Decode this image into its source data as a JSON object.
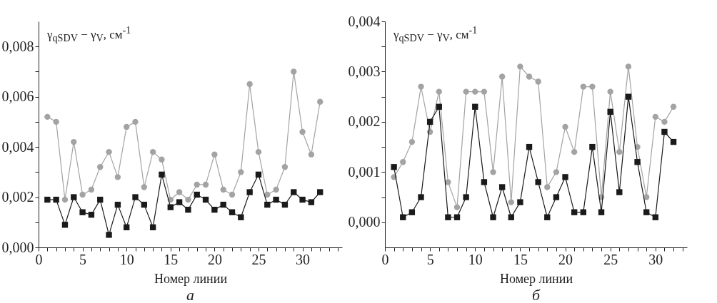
{
  "chart_data": [
    {
      "type": "line",
      "title": "а",
      "xlabel": "Номер линии",
      "ylabel": "γ$_{qSDV}$ − γ$_{V}$, см$^{-1}$",
      "x": [
        1,
        2,
        3,
        4,
        5,
        6,
        7,
        8,
        9,
        10,
        11,
        12,
        13,
        14,
        15,
        16,
        17,
        18,
        19,
        20,
        21,
        22,
        23,
        24,
        25,
        26,
        27,
        28,
        29,
        30,
        31,
        32
      ],
      "series": [
        {
          "color": "#a3a3a3",
          "marker": "circle",
          "values": [
            0.0052,
            0.005,
            0.0019,
            0.0042,
            0.0021,
            0.0023,
            0.0032,
            0.0038,
            0.0028,
            0.0048,
            0.005,
            0.0024,
            0.0038,
            0.0035,
            0.0019,
            0.0022,
            0.0019,
            0.0025,
            0.0025,
            0.0037,
            0.0023,
            0.0021,
            0.003,
            0.0065,
            0.0038,
            0.0021,
            0.0023,
            0.0032,
            0.007,
            0.0046,
            0.0037,
            0.0058
          ]
        },
        {
          "color": "#1a1a1a",
          "marker": "square",
          "values": [
            0.0019,
            0.0019,
            0.0009,
            0.002,
            0.0014,
            0.0013,
            0.0019,
            0.0005,
            0.0017,
            0.0008,
            0.002,
            0.0017,
            0.0008,
            0.0029,
            0.0016,
            0.0018,
            0.0015,
            0.0021,
            0.0019,
            0.0015,
            0.0017,
            0.0014,
            0.0012,
            0.0022,
            0.0029,
            0.0017,
            0.0019,
            0.0017,
            0.0022,
            0.0019,
            0.0018,
            0.0022
          ]
        }
      ],
      "xlim": [
        0,
        34.5
      ],
      "ylim": [
        0,
        0.009
      ],
      "xticks": [
        0,
        {
          "value": 1,
          "label": null
        },
        {
          "value": 2,
          "label": null
        },
        {
          "value": 3,
          "label": null
        },
        {
          "value": 4,
          "label": null
        },
        5,
        {
          "value": 6,
          "label": null
        },
        {
          "value": 7,
          "label": null
        },
        {
          "value": 8,
          "label": null
        },
        {
          "value": 9,
          "label": null
        },
        10,
        {
          "value": 11,
          "label": null
        },
        {
          "value": 12,
          "label": null
        },
        {
          "value": 13,
          "label": null
        },
        {
          "value": 14,
          "label": null
        },
        15,
        {
          "value": 16,
          "label": null
        },
        {
          "value": 17,
          "label": null
        },
        {
          "value": 18,
          "label": null
        },
        {
          "value": 19,
          "label": null
        },
        20,
        {
          "value": 21,
          "label": null
        },
        {
          "value": 22,
          "label": null
        },
        {
          "value": 23,
          "label": null
        },
        {
          "value": 24,
          "label": null
        },
        25,
        {
          "value": 26,
          "label": null
        },
        {
          "value": 27,
          "label": null
        },
        {
          "value": 28,
          "label": null
        },
        {
          "value": 29,
          "label": null
        },
        30,
        {
          "value": 31,
          "label": null
        },
        {
          "value": 32,
          "label": null
        },
        {
          "value": 33,
          "label": null
        },
        {
          "value": 34,
          "label": null
        }
      ],
      "yticks": [
        {
          "value": 0,
          "label": "0,000"
        },
        {
          "value": 0.001,
          "label": null
        },
        {
          "value": 0.002,
          "label": "0,002"
        },
        {
          "value": 0.003,
          "label": null
        },
        {
          "value": 0.004,
          "label": "0,004"
        },
        {
          "value": 0.005,
          "label": null
        },
        {
          "value": 0.006,
          "label": "0,006"
        },
        {
          "value": 0.007,
          "label": null
        },
        {
          "value": 0.008,
          "label": "0,008"
        }
      ]
    },
    {
      "type": "line",
      "title": "б",
      "xlabel": "Номер линии",
      "ylabel": "γ$_{qSDV}$ − γ$_{V}$, см$^{-1}$",
      "x": [
        1,
        2,
        3,
        4,
        5,
        6,
        7,
        8,
        9,
        10,
        11,
        12,
        13,
        14,
        15,
        16,
        17,
        18,
        19,
        20,
        21,
        22,
        23,
        24,
        25,
        26,
        27,
        28,
        29,
        30,
        31,
        32
      ],
      "series": [
        {
          "color": "#a3a3a3",
          "marker": "circle",
          "values": [
            0.0009,
            0.0012,
            0.0016,
            0.0027,
            0.0018,
            0.0026,
            0.0008,
            0.0003,
            0.0026,
            0.0026,
            0.0026,
            0.001,
            0.0029,
            0.0004,
            0.0031,
            0.0029,
            0.0028,
            0.0007,
            0.001,
            0.0019,
            0.0014,
            0.0027,
            0.0027,
            0.0005,
            0.0026,
            0.0014,
            0.0031,
            0.0015,
            0.0005,
            0.0021,
            0.002,
            0.0023
          ]
        },
        {
          "color": "#1a1a1a",
          "marker": "square",
          "values": [
            0.0011,
            0.0001,
            0.0002,
            0.0005,
            0.002,
            0.0023,
            0.0001,
            0.0001,
            0.0005,
            0.0023,
            0.0008,
            0.0001,
            0.0007,
            0.0001,
            0.0004,
            0.0015,
            0.0008,
            0.0001,
            0.0005,
            0.0009,
            0.0002,
            0.0002,
            0.0015,
            0.0002,
            0.0022,
            0.0006,
            0.0025,
            0.0012,
            0.0002,
            0.0001,
            0.0018,
            0.0016
          ]
        }
      ],
      "xlim": [
        0,
        33.5
      ],
      "ylim": [
        -0.0005,
        0.004
      ],
      "xticks": [
        0,
        {
          "value": 1,
          "label": null
        },
        {
          "value": 2,
          "label": null
        },
        {
          "value": 3,
          "label": null
        },
        {
          "value": 4,
          "label": null
        },
        5,
        {
          "value": 6,
          "label": null
        },
        {
          "value": 7,
          "label": null
        },
        {
          "value": 8,
          "label": null
        },
        {
          "value": 9,
          "label": null
        },
        10,
        {
          "value": 11,
          "label": null
        },
        {
          "value": 12,
          "label": null
        },
        {
          "value": 13,
          "label": null
        },
        {
          "value": 14,
          "label": null
        },
        15,
        {
          "value": 16,
          "label": null
        },
        {
          "value": 17,
          "label": null
        },
        {
          "value": 18,
          "label": null
        },
        {
          "value": 19,
          "label": null
        },
        20,
        {
          "value": 21,
          "label": null
        },
        {
          "value": 22,
          "label": null
        },
        {
          "value": 23,
          "label": null
        },
        {
          "value": 24,
          "label": null
        },
        25,
        {
          "value": 26,
          "label": null
        },
        {
          "value": 27,
          "label": null
        },
        {
          "value": 28,
          "label": null
        },
        {
          "value": 29,
          "label": null
        },
        30,
        {
          "value": 31,
          "label": null
        },
        {
          "value": 32,
          "label": null
        },
        {
          "value": 33,
          "label": null
        }
      ],
      "yticks": [
        {
          "value": 0,
          "label": "0,000"
        },
        {
          "value": 0.0005,
          "label": null
        },
        {
          "value": 0.001,
          "label": "0,001"
        },
        {
          "value": 0.0015,
          "label": null
        },
        {
          "value": 0.002,
          "label": "0,002"
        },
        {
          "value": 0.0025,
          "label": null
        },
        {
          "value": 0.003,
          "label": "0,003"
        },
        {
          "value": 0.0035,
          "label": null
        },
        {
          "value": 0.004,
          "label": "0,004"
        }
      ]
    }
  ]
}
